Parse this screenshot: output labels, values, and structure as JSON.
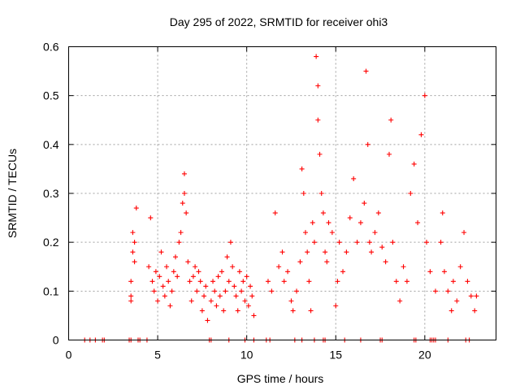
{
  "chart_data": {
    "type": "scatter",
    "title": "Day 295 of 2022, SRMTID for receiver ohi3",
    "xlabel": "GPS time / hours",
    "ylabel": "SRMTID / TECUs",
    "xlim": [
      0,
      24
    ],
    "ylim": [
      0,
      0.6
    ],
    "x_ticks": [
      0,
      5,
      10,
      15,
      20
    ],
    "y_ticks": [
      0,
      0.1,
      0.2,
      0.3,
      0.4,
      0.5,
      0.6
    ],
    "x_tick_labels": [
      "0",
      "5",
      "10",
      "15",
      "20"
    ],
    "y_tick_labels": [
      "0",
      "0.1",
      "0.2",
      "0.3",
      "0.4",
      "0.5",
      "0.6"
    ],
    "grid": true,
    "marker": "+",
    "series_color": "#ff0000",
    "series": [
      {
        "name": "SRMTID",
        "points": [
          [
            0.9,
            0
          ],
          [
            1.2,
            0
          ],
          [
            1.5,
            0
          ],
          [
            1.9,
            0
          ],
          [
            2.0,
            0
          ],
          [
            3.4,
            0
          ],
          [
            3.5,
            0
          ],
          [
            3.9,
            0
          ],
          [
            4.0,
            0
          ],
          [
            4.4,
            0
          ],
          [
            7.9,
            0
          ],
          [
            8.0,
            0
          ],
          [
            9.0,
            0
          ],
          [
            9.9,
            0
          ],
          [
            10.4,
            0
          ],
          [
            11.1,
            0
          ],
          [
            11.3,
            0
          ],
          [
            12.7,
            0
          ],
          [
            13.1,
            0
          ],
          [
            13.8,
            0
          ],
          [
            14.3,
            0
          ],
          [
            14.4,
            0
          ],
          [
            15.5,
            0
          ],
          [
            16.4,
            0
          ],
          [
            17.5,
            0
          ],
          [
            17.6,
            0
          ],
          [
            19.4,
            0
          ],
          [
            19.5,
            0
          ],
          [
            20.3,
            0
          ],
          [
            20.4,
            0
          ],
          [
            20.5,
            0
          ],
          [
            20.6,
            0
          ],
          [
            21.3,
            0
          ],
          [
            22.3,
            0
          ],
          [
            22.5,
            0
          ],
          [
            3.5,
            0.08
          ],
          [
            3.5,
            0.12
          ],
          [
            3.6,
            0.18
          ],
          [
            3.6,
            0.22
          ],
          [
            3.7,
            0.2
          ],
          [
            3.7,
            0.16
          ],
          [
            3.8,
            0.27
          ],
          [
            3.5,
            0.09
          ],
          [
            4.5,
            0.15
          ],
          [
            4.6,
            0.25
          ],
          [
            4.7,
            0.12
          ],
          [
            4.8,
            0.1
          ],
          [
            4.9,
            0.14
          ],
          [
            5.0,
            0.08
          ],
          [
            5.1,
            0.13
          ],
          [
            5.2,
            0.18
          ],
          [
            5.3,
            0.11
          ],
          [
            5.4,
            0.09
          ],
          [
            5.5,
            0.15
          ],
          [
            5.6,
            0.12
          ],
          [
            5.7,
            0.07
          ],
          [
            5.8,
            0.1
          ],
          [
            5.9,
            0.14
          ],
          [
            6.0,
            0.17
          ],
          [
            6.1,
            0.13
          ],
          [
            6.2,
            0.2
          ],
          [
            6.3,
            0.22
          ],
          [
            6.4,
            0.28
          ],
          [
            6.5,
            0.34
          ],
          [
            6.5,
            0.3
          ],
          [
            6.6,
            0.26
          ],
          [
            6.7,
            0.16
          ],
          [
            6.8,
            0.12
          ],
          [
            6.9,
            0.08
          ],
          [
            7.0,
            0.13
          ],
          [
            7.1,
            0.15
          ],
          [
            7.2,
            0.1
          ],
          [
            7.3,
            0.14
          ],
          [
            7.4,
            0.12
          ],
          [
            7.5,
            0.06
          ],
          [
            7.6,
            0.09
          ],
          [
            7.7,
            0.11
          ],
          [
            7.8,
            0.04
          ],
          [
            8.0,
            0.08
          ],
          [
            8.1,
            0.12
          ],
          [
            8.2,
            0.1
          ],
          [
            8.3,
            0.07
          ],
          [
            8.4,
            0.13
          ],
          [
            8.5,
            0.09
          ],
          [
            8.6,
            0.14
          ],
          [
            8.7,
            0.06
          ],
          [
            8.8,
            0.1
          ],
          [
            8.9,
            0.17
          ],
          [
            9.0,
            0.12
          ],
          [
            9.1,
            0.2
          ],
          [
            9.2,
            0.15
          ],
          [
            9.3,
            0.11
          ],
          [
            9.4,
            0.09
          ],
          [
            9.5,
            0.06
          ],
          [
            9.6,
            0.14
          ],
          [
            9.7,
            0.1
          ],
          [
            9.8,
            0.12
          ],
          [
            9.9,
            0.08
          ],
          [
            10.0,
            0.13
          ],
          [
            10.1,
            0.07
          ],
          [
            10.2,
            0.11
          ],
          [
            10.3,
            0.09
          ],
          [
            10.4,
            0.05
          ],
          [
            11.2,
            0.12
          ],
          [
            11.4,
            0.1
          ],
          [
            11.6,
            0.26
          ],
          [
            11.8,
            0.15
          ],
          [
            12.0,
            0.18
          ],
          [
            12.1,
            0.12
          ],
          [
            12.3,
            0.14
          ],
          [
            12.5,
            0.08
          ],
          [
            12.6,
            0.06
          ],
          [
            12.8,
            0.1
          ],
          [
            13.0,
            0.16
          ],
          [
            13.1,
            0.35
          ],
          [
            13.2,
            0.3
          ],
          [
            13.3,
            0.22
          ],
          [
            13.4,
            0.18
          ],
          [
            13.5,
            0.12
          ],
          [
            13.6,
            0.06
          ],
          [
            13.7,
            0.24
          ],
          [
            13.8,
            0.2
          ],
          [
            13.9,
            0.58
          ],
          [
            14.0,
            0.52
          ],
          [
            14.0,
            0.45
          ],
          [
            14.1,
            0.38
          ],
          [
            14.2,
            0.3
          ],
          [
            14.3,
            0.26
          ],
          [
            14.4,
            0.18
          ],
          [
            14.5,
            0.16
          ],
          [
            14.6,
            0.24
          ],
          [
            14.8,
            0.22
          ],
          [
            15.0,
            0.07
          ],
          [
            15.1,
            0.12
          ],
          [
            15.2,
            0.2
          ],
          [
            15.4,
            0.14
          ],
          [
            15.6,
            0.18
          ],
          [
            15.8,
            0.25
          ],
          [
            16.0,
            0.33
          ],
          [
            16.2,
            0.2
          ],
          [
            16.4,
            0.24
          ],
          [
            16.6,
            0.28
          ],
          [
            16.7,
            0.55
          ],
          [
            16.8,
            0.4
          ],
          [
            16.9,
            0.2
          ],
          [
            17.0,
            0.18
          ],
          [
            17.2,
            0.22
          ],
          [
            17.4,
            0.26
          ],
          [
            17.6,
            0.19
          ],
          [
            17.8,
            0.16
          ],
          [
            18.0,
            0.38
          ],
          [
            18.1,
            0.45
          ],
          [
            18.2,
            0.2
          ],
          [
            18.4,
            0.12
          ],
          [
            18.6,
            0.08
          ],
          [
            18.8,
            0.15
          ],
          [
            19.0,
            0.12
          ],
          [
            19.2,
            0.3
          ],
          [
            19.4,
            0.36
          ],
          [
            19.6,
            0.24
          ],
          [
            19.8,
            0.42
          ],
          [
            20.0,
            0.5
          ],
          [
            20.1,
            0.2
          ],
          [
            20.3,
            0.14
          ],
          [
            20.6,
            0.1
          ],
          [
            20.9,
            0.2
          ],
          [
            21.0,
            0.26
          ],
          [
            21.1,
            0.14
          ],
          [
            21.3,
            0.1
          ],
          [
            21.5,
            0.06
          ],
          [
            21.6,
            0.12
          ],
          [
            21.8,
            0.08
          ],
          [
            22.0,
            0.15
          ],
          [
            22.2,
            0.22
          ],
          [
            22.4,
            0.12
          ],
          [
            22.6,
            0.09
          ],
          [
            22.8,
            0.06
          ],
          [
            22.9,
            0.09
          ]
        ]
      }
    ]
  }
}
